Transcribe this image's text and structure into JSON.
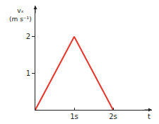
{
  "chart_data": {
    "type": "line",
    "x": [
      0,
      1,
      2
    ],
    "values": [
      0,
      2,
      0
    ],
    "color": "#e8362a",
    "xlabel": "t",
    "ylabel": "vₓ (m s⁻¹)",
    "xlim": [
      0,
      3
    ],
    "ylim": [
      0,
      2.85
    ],
    "xticks": [
      {
        "value": 1,
        "label": "1s"
      },
      {
        "value": 2,
        "label": "2s"
      }
    ],
    "yticks": [
      1,
      2
    ],
    "grid": false
  }
}
